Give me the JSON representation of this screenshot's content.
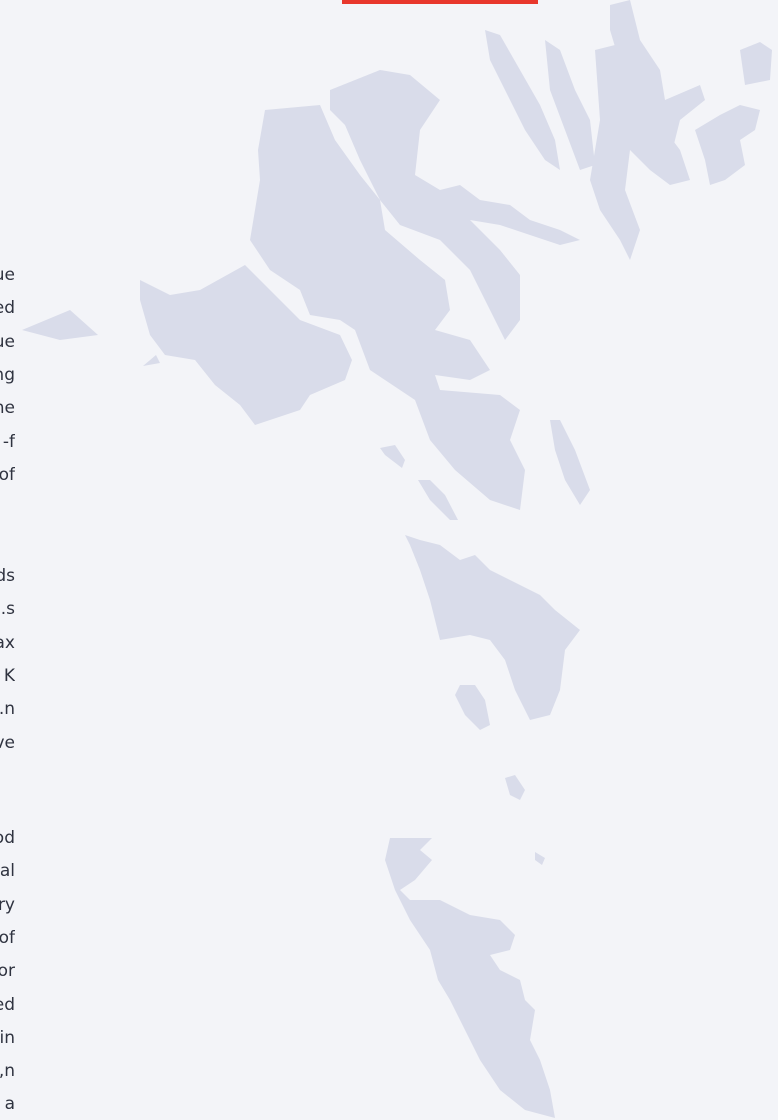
{
  "paragraphs": [
    [
      "ue",
      "ed",
      "ue",
      "ng",
      "he",
      "f-",
      "of"
    ],
    [
      "ds",
      "s.",
      "ax",
      "K",
      "n.",
      "ve"
    ],
    [
      "od",
      "al",
      "ry",
      "of",
      "or",
      "ed",
      "in",
      "n,",
      "a"
    ]
  ]
}
